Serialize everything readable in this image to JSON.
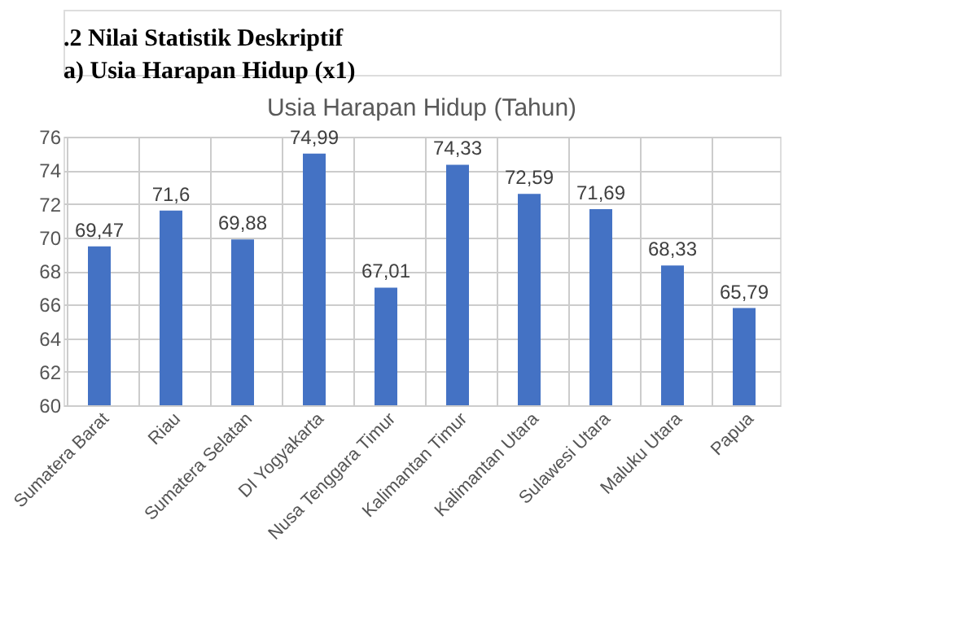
{
  "chart_data": {
    "type": "bar",
    "title": "Usia Harapan Hidup (Tahun)",
    "annotations": [
      ".2   Nilai Statistik Deskriptif",
      "a)   Usia Harapan Hidup (x1)"
    ],
    "categories": [
      "Sumatera Barat",
      "Riau",
      "Sumatera Selatan",
      "DI Yogyakarta",
      "Nusa Tenggara Timur",
      "Kalimantan Timur",
      "Kalimantan Utara",
      "Sulawesi Utara",
      "Maluku Utara",
      "Papua"
    ],
    "values": [
      69.47,
      71.6,
      69.88,
      74.99,
      67.01,
      74.33,
      72.59,
      71.69,
      68.33,
      65.79
    ],
    "value_labels": [
      "69,47",
      "71,6",
      "69,88",
      "74,99",
      "67,01",
      "74,33",
      "72,59",
      "71,69",
      "68,33",
      "65,79"
    ],
    "color": "#4472c4",
    "ylim": [
      60,
      76
    ],
    "yticks": [
      60,
      62,
      64,
      66,
      68,
      70,
      72,
      74,
      76
    ],
    "grid": true
  }
}
